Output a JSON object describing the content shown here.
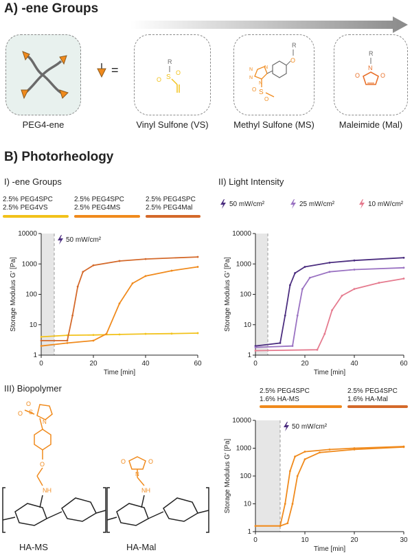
{
  "panel_a": {
    "title": "A) -ene Groups",
    "equals": "=",
    "molecules": [
      {
        "label": "PEG4-ene",
        "color": "#6a6a6a"
      },
      {
        "label": "Vinyl Sulfone (VS)",
        "color": "#f2c21a"
      },
      {
        "label": "Methyl Sulfone (MS)",
        "color": "#f08a1c"
      },
      {
        "label": "Maleimide (Mal)",
        "color": "#e8702a"
      }
    ],
    "atoms": {
      "r": "R",
      "s": "S",
      "o": "O",
      "n": "N"
    }
  },
  "panel_b": {
    "title": "B) Photorheology",
    "sub1": "I) -ene Groups",
    "sub2": "II) Light Intensity",
    "sub3": "III) Biopolymer",
    "legend1": [
      {
        "line1": "2.5% PEG4SPC",
        "line2": "2.5% PEG4VS",
        "color": "#f2c21a"
      },
      {
        "line1": "2.5% PEG4SPC",
        "line2": "2.5% PEG4MS",
        "color": "#f08a1c"
      },
      {
        "line1": "2.5% PEG4SPC",
        "line2": "2.5% PEG4Mal",
        "color": "#d4692a"
      }
    ],
    "legend2": [
      {
        "label": "50 mW/cm²",
        "color": "#4b2d7f"
      },
      {
        "label": "25 mW/cm²",
        "color": "#9a72c2"
      },
      {
        "label": "10 mW/cm²",
        "color": "#e57a8e"
      }
    ],
    "legend3": [
      {
        "line1": "2.5% PEG4SPC",
        "line2": "1.6% HA-MS",
        "color": "#f08a1c"
      },
      {
        "line1": "2.5% PEG4SPC",
        "line2": "1.6% HA-Mal",
        "color": "#d4692a"
      }
    ],
    "biopolymer_labels": [
      "HA-MS",
      "HA-Mal"
    ],
    "bio_atoms": {
      "nh": "NH",
      "o": "O",
      "n": "N"
    },
    "light_annotation": "50 mW/cm²"
  },
  "colors": {
    "grey": "#6a6a6a",
    "shade": "#e6e6e6"
  },
  "chart_data": [
    {
      "type": "line",
      "title": "I) -ene Groups",
      "xlabel": "Time [min]",
      "ylabel": "Storage Modulus G' [Pa]",
      "xlim": [
        0,
        60
      ],
      "ylim": [
        1,
        10000
      ],
      "yscale": "log",
      "xticks": [
        "0",
        "20",
        "40",
        "60"
      ],
      "yticks": [
        "1",
        "10",
        "100",
        "1000",
        "10000"
      ],
      "light_on_min": 5,
      "series": [
        {
          "name": "2.5% PEG4VS",
          "x": [
            0,
            10,
            20,
            30,
            40,
            50,
            60
          ],
          "y": [
            4,
            4.5,
            4.6,
            4.8,
            5,
            5.1,
            5.3
          ]
        },
        {
          "name": "2.5% PEG4MS",
          "x": [
            0,
            10,
            20,
            25,
            30,
            35,
            40,
            50,
            60
          ],
          "y": [
            2,
            2.5,
            3,
            5,
            50,
            230,
            400,
            600,
            800
          ]
        },
        {
          "name": "2.5% PEG4Mal",
          "x": [
            0,
            10,
            12,
            14,
            16,
            20,
            30,
            40,
            60
          ],
          "y": [
            3,
            3,
            20,
            180,
            550,
            900,
            1250,
            1450,
            1700
          ]
        }
      ]
    },
    {
      "type": "line",
      "title": "II) Light Intensity",
      "xlabel": "Time [min]",
      "ylabel": "Storage Modulus G' [Pa]",
      "xlim": [
        0,
        60
      ],
      "ylim": [
        1,
        10000
      ],
      "yscale": "log",
      "xticks": [
        "0",
        "20",
        "40",
        "60"
      ],
      "yticks": [
        "1",
        "10",
        "100",
        "1000",
        "10000"
      ],
      "light_on_min": 5,
      "series": [
        {
          "name": "50 mW/cm²",
          "x": [
            0,
            10,
            12,
            14,
            16,
            20,
            30,
            40,
            60
          ],
          "y": [
            2,
            2.5,
            20,
            200,
            500,
            800,
            1100,
            1300,
            1600
          ]
        },
        {
          "name": "25 mW/cm²",
          "x": [
            0,
            15,
            17,
            19,
            22,
            30,
            40,
            60
          ],
          "y": [
            1.8,
            2,
            20,
            150,
            350,
            550,
            650,
            750
          ]
        },
        {
          "name": "10 mW/cm²",
          "x": [
            0,
            25,
            28,
            31,
            35,
            40,
            50,
            60
          ],
          "y": [
            1.4,
            1.5,
            5,
            30,
            90,
            150,
            240,
            330
          ]
        }
      ]
    },
    {
      "type": "line",
      "title": "III) Biopolymer",
      "xlabel": "Time [min]",
      "ylabel": "Storage Modulus G' [Pa]",
      "xlim": [
        0,
        30
      ],
      "ylim": [
        1,
        10000
      ],
      "yscale": "log",
      "xticks": [
        "0",
        "10",
        "20",
        "30"
      ],
      "yticks": [
        "1",
        "10",
        "100",
        "1000",
        "10000"
      ],
      "light_on_min": 5,
      "series": [
        {
          "name": "1.6% HA-MS",
          "x": [
            0,
            5,
            6,
            7,
            8,
            10,
            15,
            20,
            30
          ],
          "y": [
            1.6,
            1.6,
            10,
            150,
            500,
            750,
            900,
            1000,
            1150
          ]
        },
        {
          "name": "1.6% HA-Mal",
          "x": [
            0,
            5,
            6.5,
            7.5,
            8.5,
            10,
            13,
            20,
            30
          ],
          "y": [
            1.6,
            1.6,
            2,
            10,
            100,
            400,
            700,
            900,
            1100
          ]
        }
      ]
    }
  ]
}
